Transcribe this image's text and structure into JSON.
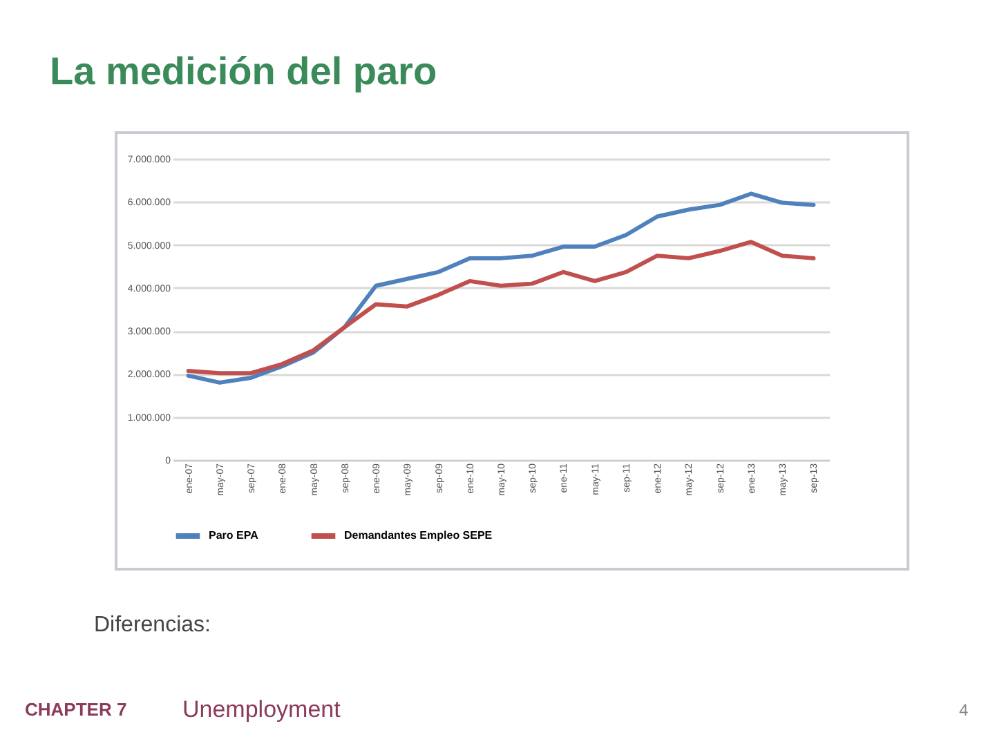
{
  "chart_data": {
    "type": "line",
    "title": "La medición del paro",
    "categories": [
      "ene-07",
      "may-07",
      "sep-07",
      "ene-08",
      "may-08",
      "sep-08",
      "ene-09",
      "may-09",
      "sep-09",
      "ene-10",
      "may-10",
      "sep-10",
      "ene-11",
      "may-11",
      "sep-11",
      "ene-12",
      "may-12",
      "sep-12",
      "ene-13",
      "may-13",
      "sep-13"
    ],
    "series": [
      {
        "name": "Paro EPA",
        "color": "#4f81bd",
        "values": [
          1960000,
          1800000,
          1910000,
          2180000,
          2500000,
          3090000,
          4050000,
          4210000,
          4370000,
          4690000,
          4690000,
          4750000,
          4960000,
          4960000,
          5230000,
          5660000,
          5820000,
          5930000,
          6190000,
          5980000,
          5930000
        ]
      },
      {
        "name": "Demandantes Empleo SEPE",
        "color": "#c0504d",
        "values": [
          2070000,
          2020000,
          2020000,
          2230000,
          2550000,
          3090000,
          3620000,
          3570000,
          3840000,
          4160000,
          4050000,
          4100000,
          4370000,
          4160000,
          4370000,
          4750000,
          4690000,
          4860000,
          5070000,
          4750000,
          4690000
        ]
      }
    ],
    "ylim": [
      0,
      7000000
    ],
    "yticks": [
      0,
      {
        "value": 1000000,
        "label": "1.000.000"
      },
      {
        "value": 2000000,
        "label": "2.000.000"
      },
      {
        "value": 3000000,
        "label": "3.000.000"
      },
      {
        "value": 4000000,
        "label": "4.000.000"
      },
      {
        "value": 5000000,
        "label": "5.000.000"
      },
      {
        "value": 6000000,
        "label": "6.000.000"
      },
      {
        "value": 7000000,
        "label": "7.000.000"
      }
    ],
    "grid": "y",
    "legend": "bottom",
    "marker": "none",
    "line_style": "solid",
    "annotations": [
      "Diferencias:",
      "CHAPTER 7",
      "Unemployment",
      "4"
    ]
  }
}
